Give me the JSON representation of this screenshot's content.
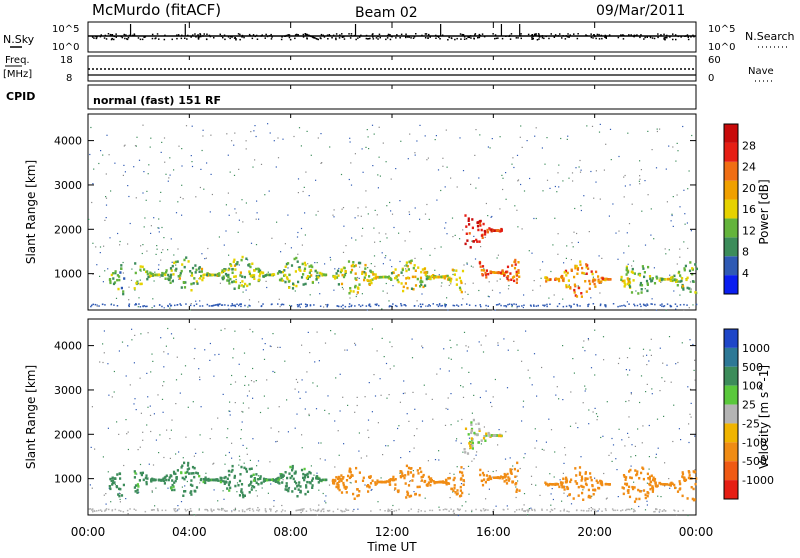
{
  "header": {
    "station": "McMurdo (fitACF)",
    "beam": "Beam 02",
    "date": "09/Mar/2011"
  },
  "top_panel": {
    "left_label": "N.Sky",
    "left_ticks": [
      "10^5",
      "10^0"
    ],
    "right_label": "N.Search",
    "right_ticks": [
      "10^5",
      "10^0"
    ]
  },
  "freq_panel": {
    "left_label_1": "Freq.",
    "left_label_2": "[MHz]",
    "left_ticks": [
      "18",
      "8"
    ],
    "right_label": "Nave",
    "right_ticks": [
      "60",
      "0"
    ]
  },
  "cpid_panel": {
    "label": "CPID",
    "text": "normal (fast) 151 RF"
  },
  "colors": {
    "power_scale": [
      "#0a1ef0",
      "#2f5ab4",
      "#3c8c5a",
      "#64b43c",
      "#e6d200",
      "#f0a000",
      "#f06e14",
      "#e61e14",
      "#c80a0a"
    ],
    "velocity_scale": [
      "#1e46c8",
      "#2d7896",
      "#3c8c5a",
      "#5ac83c",
      "#b4b4b4",
      "#f0b400",
      "#f08c14",
      "#f05a14",
      "#e61e14"
    ]
  },
  "chart_data": [
    {
      "type": "heatmap",
      "title": "",
      "xlabel": "",
      "ylabel": "Slant Range [km]",
      "xlim": [
        0,
        24
      ],
      "ylim": [
        180,
        4600
      ],
      "y_ticks": [
        "1000",
        "2000",
        "3000",
        "4000"
      ],
      "colorbar": {
        "label": "Power [dB]",
        "range": [
          0,
          30
        ],
        "ticks": [
          "4",
          "8",
          "12",
          "16",
          "20",
          "24",
          "28"
        ]
      },
      "echo_bands": [
        {
          "t_start": 0.8,
          "t_end": 1.4,
          "range_km": 900,
          "power_db": 10
        },
        {
          "t_start": 1.8,
          "t_end": 9.4,
          "range_km": 1000,
          "power_db": 12
        },
        {
          "t_start": 9.6,
          "t_end": 14.8,
          "range_km": 950,
          "power_db": 14
        },
        {
          "t_start": 14.8,
          "t_end": 16.3,
          "range_km": 2000,
          "power_db": 26
        },
        {
          "t_start": 15.4,
          "t_end": 17.0,
          "range_km": 1050,
          "power_db": 22
        },
        {
          "t_start": 18.0,
          "t_end": 20.6,
          "range_km": 900,
          "power_db": 20
        },
        {
          "t_start": 21.0,
          "t_end": 24.0,
          "range_km": 900,
          "power_db": 12
        }
      ]
    },
    {
      "type": "heatmap",
      "title": "",
      "xlabel": "Time UT",
      "ylabel": "Slant Range [km]",
      "xlim": [
        0,
        24
      ],
      "ylim": [
        180,
        4600
      ],
      "y_ticks": [
        "1000",
        "2000",
        "3000",
        "4000"
      ],
      "x_ticks": [
        "00:00",
        "04:00",
        "08:00",
        "12:00",
        "16:00",
        "20:00",
        "00:00"
      ],
      "colorbar": {
        "label": "Velocity [m s^-1]",
        "range": [
          -1000,
          1000
        ],
        "ticks": [
          "1000",
          "500",
          "100",
          "25",
          "-25",
          "-100",
          "-500",
          "-1000"
        ]
      },
      "echo_bands": [
        {
          "t_start": 0.8,
          "t_end": 1.4,
          "range_km": 900,
          "velocity": 200
        },
        {
          "t_start": 1.8,
          "t_end": 9.4,
          "range_km": 1000,
          "velocity": 150
        },
        {
          "t_start": 9.6,
          "t_end": 14.8,
          "range_km": 950,
          "velocity": -300
        },
        {
          "t_start": 14.8,
          "t_end": 16.3,
          "range_km": 2000,
          "velocity": 0
        },
        {
          "t_start": 15.4,
          "t_end": 17.0,
          "range_km": 1050,
          "velocity": -300
        },
        {
          "t_start": 18.0,
          "t_end": 20.6,
          "range_km": 900,
          "velocity": -300
        },
        {
          "t_start": 21.0,
          "t_end": 24.0,
          "range_km": 900,
          "velocity": -250
        }
      ]
    }
  ]
}
